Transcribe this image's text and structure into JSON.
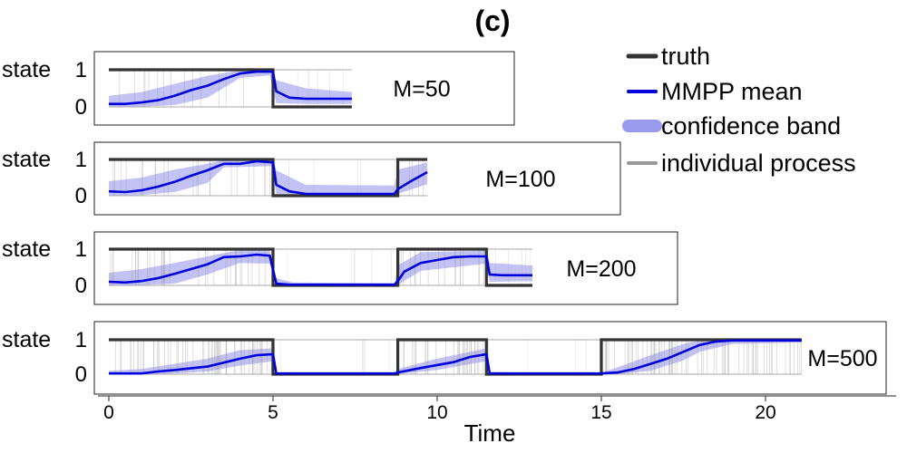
{
  "figure_title": "(c)",
  "chart_data": {
    "type": "line",
    "title": "(c)",
    "xlabel": "Time",
    "ylabel": "state",
    "xlim": [
      0,
      24
    ],
    "x_ticks": [
      0,
      5,
      10,
      15,
      20
    ],
    "ylim": [
      0,
      1
    ],
    "y_ticks": [
      0,
      1
    ],
    "legend": {
      "placement": "top-right",
      "entries": [
        "truth",
        "MMPP mean",
        "confidence band",
        "individual process"
      ]
    },
    "colors": {
      "truth": "#333333",
      "mean": "#0000dd",
      "band": "#9999ee",
      "process": "#999999"
    },
    "panels": [
      {
        "label": "M=50",
        "x_max": 7.4,
        "truth": [
          [
            0,
            1
          ],
          [
            5,
            0
          ],
          [
            7.4,
            0
          ]
        ],
        "mean": [
          [
            0,
            0.08
          ],
          [
            0.5,
            0.08
          ],
          [
            1,
            0.12
          ],
          [
            1.5,
            0.18
          ],
          [
            2,
            0.3
          ],
          [
            2.5,
            0.45
          ],
          [
            3,
            0.57
          ],
          [
            3.5,
            0.75
          ],
          [
            4,
            0.9
          ],
          [
            4.5,
            0.95
          ],
          [
            5,
            0.95
          ],
          [
            5.1,
            0.42
          ],
          [
            5.5,
            0.25
          ],
          [
            6,
            0.22
          ],
          [
            7.4,
            0.22
          ]
        ],
        "band_upper": [
          [
            0,
            0.3
          ],
          [
            1,
            0.4
          ],
          [
            2,
            0.62
          ],
          [
            3,
            0.84
          ],
          [
            4,
            0.98
          ],
          [
            4.9,
            0.98
          ],
          [
            5.1,
            0.72
          ],
          [
            6,
            0.5
          ],
          [
            7.4,
            0.4
          ]
        ],
        "band_lower": [
          [
            0,
            0
          ],
          [
            1,
            0.01
          ],
          [
            2,
            0.05
          ],
          [
            3,
            0.25
          ],
          [
            4,
            0.78
          ],
          [
            4.9,
            0.85
          ],
          [
            5.1,
            0.1
          ],
          [
            6,
            0.08
          ],
          [
            7.4,
            0.08
          ]
        ]
      },
      {
        "label": "M=100",
        "x_max": 9.7,
        "truth": [
          [
            0,
            1
          ],
          [
            5,
            0
          ],
          [
            8.8,
            1
          ],
          [
            9.7,
            1
          ]
        ],
        "mean": [
          [
            0,
            0.12
          ],
          [
            0.5,
            0.1
          ],
          [
            1,
            0.15
          ],
          [
            1.5,
            0.25
          ],
          [
            2,
            0.38
          ],
          [
            2.5,
            0.55
          ],
          [
            3,
            0.7
          ],
          [
            3.5,
            0.88
          ],
          [
            4,
            0.88
          ],
          [
            4.5,
            0.95
          ],
          [
            5,
            0.92
          ],
          [
            5.1,
            0.3
          ],
          [
            5.5,
            0.12
          ],
          [
            6,
            0.05
          ],
          [
            8.7,
            0.05
          ],
          [
            8.8,
            0.18
          ],
          [
            9.2,
            0.4
          ],
          [
            9.7,
            0.65
          ]
        ],
        "band_upper": [
          [
            0,
            0.4
          ],
          [
            1,
            0.5
          ],
          [
            2,
            0.72
          ],
          [
            3,
            0.88
          ],
          [
            3.5,
            0.98
          ],
          [
            5,
            0.98
          ],
          [
            5.1,
            0.7
          ],
          [
            6,
            0.3
          ],
          [
            8.7,
            0.28
          ],
          [
            8.8,
            0.72
          ],
          [
            9.7,
            0.92
          ]
        ],
        "band_lower": [
          [
            0,
            0
          ],
          [
            1,
            0.02
          ],
          [
            2,
            0.1
          ],
          [
            3,
            0.35
          ],
          [
            3.5,
            0.78
          ],
          [
            5,
            0.82
          ],
          [
            5.1,
            0.05
          ],
          [
            6,
            0.01
          ],
          [
            8.7,
            0.01
          ],
          [
            8.8,
            0.05
          ],
          [
            9.7,
            0.32
          ]
        ]
      },
      {
        "label": "M=200",
        "x_max": 12.9,
        "truth": [
          [
            0,
            1
          ],
          [
            5,
            0
          ],
          [
            8.8,
            1
          ],
          [
            11.5,
            0
          ],
          [
            12.9,
            0
          ]
        ],
        "mean": [
          [
            0,
            0.1
          ],
          [
            0.5,
            0.08
          ],
          [
            1,
            0.12
          ],
          [
            1.5,
            0.2
          ],
          [
            2,
            0.32
          ],
          [
            2.5,
            0.45
          ],
          [
            3,
            0.58
          ],
          [
            3.5,
            0.78
          ],
          [
            4,
            0.8
          ],
          [
            4.5,
            0.85
          ],
          [
            4.9,
            0.82
          ],
          [
            5.1,
            0.05
          ],
          [
            5.5,
            0.02
          ],
          [
            8.7,
            0.02
          ],
          [
            8.8,
            0.12
          ],
          [
            9,
            0.38
          ],
          [
            9.5,
            0.62
          ],
          [
            10,
            0.7
          ],
          [
            10.5,
            0.78
          ],
          [
            11,
            0.8
          ],
          [
            11.5,
            0.8
          ],
          [
            11.6,
            0.3
          ],
          [
            12,
            0.28
          ],
          [
            12.9,
            0.28
          ]
        ],
        "band_upper": [
          [
            0,
            0.35
          ],
          [
            1,
            0.45
          ],
          [
            2,
            0.62
          ],
          [
            3,
            0.8
          ],
          [
            4,
            0.98
          ],
          [
            4.9,
            0.96
          ],
          [
            5.1,
            0.2
          ],
          [
            5.6,
            0.08
          ],
          [
            8.7,
            0.06
          ],
          [
            8.8,
            0.55
          ],
          [
            9.5,
            0.92
          ],
          [
            11.5,
            0.96
          ],
          [
            11.6,
            0.62
          ],
          [
            12.9,
            0.55
          ]
        ],
        "band_lower": [
          [
            0,
            0
          ],
          [
            1,
            0.01
          ],
          [
            2,
            0.05
          ],
          [
            3,
            0.3
          ],
          [
            4,
            0.62
          ],
          [
            4.9,
            0.6
          ],
          [
            5.1,
            0
          ],
          [
            8.7,
            0
          ],
          [
            8.8,
            0.02
          ],
          [
            9.5,
            0.4
          ],
          [
            11.5,
            0.6
          ],
          [
            11.6,
            0.1
          ],
          [
            12.9,
            0.12
          ]
        ]
      },
      {
        "label": "M=500",
        "x_max": 21.1,
        "truth": [
          [
            0,
            1
          ],
          [
            5,
            0
          ],
          [
            8.8,
            1
          ],
          [
            11.5,
            0
          ],
          [
            15,
            1
          ],
          [
            21.1,
            1
          ]
        ],
        "mean": [
          [
            0,
            0.02
          ],
          [
            1,
            0.02
          ],
          [
            1.5,
            0.08
          ],
          [
            2,
            0.12
          ],
          [
            3,
            0.22
          ],
          [
            4,
            0.45
          ],
          [
            4.5,
            0.55
          ],
          [
            5,
            0.58
          ],
          [
            5.1,
            0.02
          ],
          [
            8.7,
            0.02
          ],
          [
            8.8,
            0.05
          ],
          [
            9.5,
            0.18
          ],
          [
            10.5,
            0.35
          ],
          [
            11,
            0.5
          ],
          [
            11.5,
            0.58
          ],
          [
            11.6,
            0.02
          ],
          [
            15,
            0.02
          ],
          [
            15.5,
            0.05
          ],
          [
            16,
            0.15
          ],
          [
            16.5,
            0.3
          ],
          [
            17,
            0.45
          ],
          [
            17.5,
            0.65
          ],
          [
            18,
            0.85
          ],
          [
            18.5,
            0.95
          ],
          [
            19,
            0.98
          ],
          [
            21.1,
            0.98
          ]
        ],
        "band_upper": [
          [
            0,
            0.1
          ],
          [
            1,
            0.15
          ],
          [
            2,
            0.3
          ],
          [
            3,
            0.45
          ],
          [
            4,
            0.7
          ],
          [
            5,
            0.75
          ],
          [
            5.1,
            0.05
          ],
          [
            8.7,
            0.04
          ],
          [
            8.8,
            0.15
          ],
          [
            10,
            0.45
          ],
          [
            11.5,
            0.75
          ],
          [
            11.6,
            0.06
          ],
          [
            15,
            0.04
          ],
          [
            15.5,
            0.2
          ],
          [
            16.5,
            0.55
          ],
          [
            17.5,
            0.88
          ],
          [
            18,
            0.98
          ],
          [
            21.1,
            1
          ]
        ],
        "band_lower": [
          [
            0,
            0
          ],
          [
            1,
            0
          ],
          [
            2,
            0.02
          ],
          [
            3,
            0.08
          ],
          [
            4,
            0.25
          ],
          [
            5,
            0.38
          ],
          [
            5.1,
            0
          ],
          [
            8.7,
            0
          ],
          [
            8.8,
            0
          ],
          [
            10,
            0.12
          ],
          [
            11.5,
            0.38
          ],
          [
            11.6,
            0
          ],
          [
            15,
            0
          ],
          [
            15.5,
            0
          ],
          [
            16.5,
            0.1
          ],
          [
            17.5,
            0.4
          ],
          [
            18,
            0.65
          ],
          [
            19,
            0.88
          ],
          [
            21.1,
            0.92
          ]
        ]
      }
    ]
  }
}
